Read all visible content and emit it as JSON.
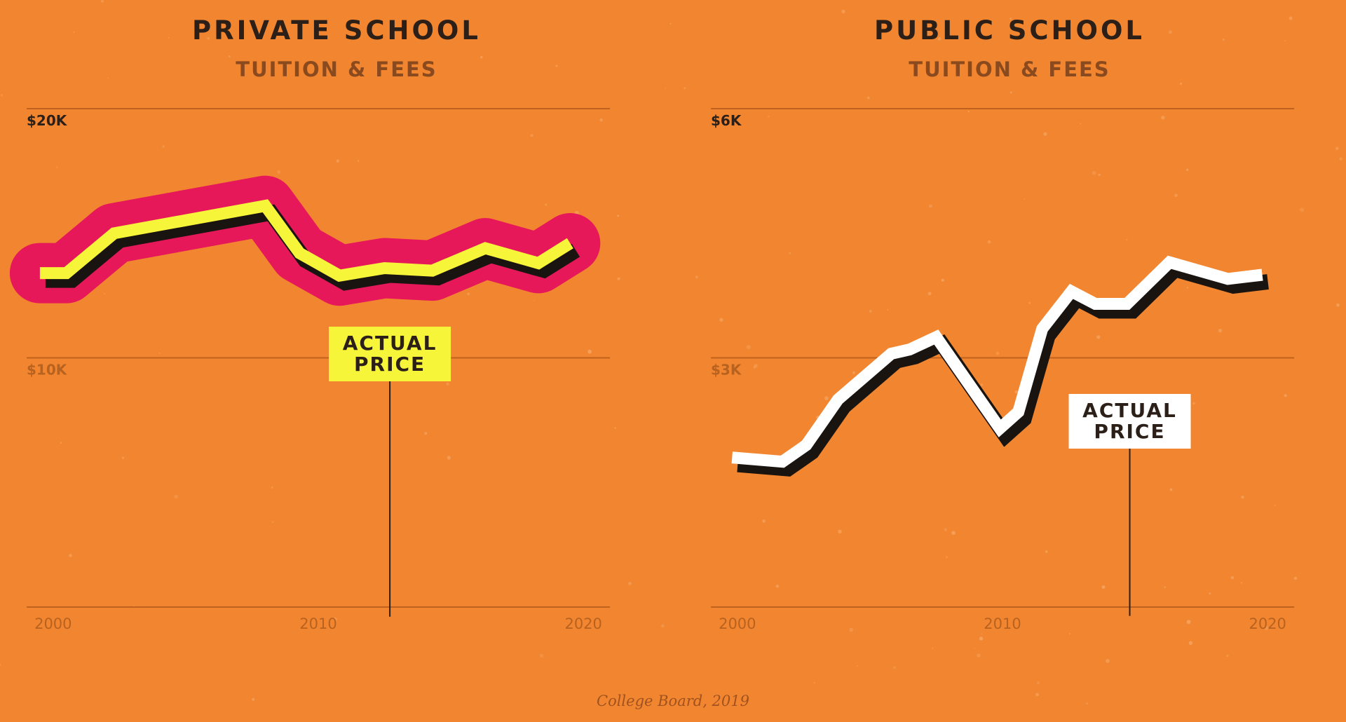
{
  "colors": {
    "background": "#F28630",
    "grid": "#c0611e",
    "tick_dark": "#2b1f18",
    "tick_light": "#b8621f",
    "line_shadow": "#1a1410",
    "private_line": "#F7F53A",
    "private_highlight": "#E6185A",
    "private_label_bg": "#F7F53A",
    "public_line": "#FFFFFF",
    "public_label_bg": "#FFFFFF"
  },
  "chart_data": [
    {
      "type": "line",
      "title": "PRIVATE SCHOOL",
      "subtitle": "TUITION & FEES",
      "xlim": [
        1999,
        2021
      ],
      "ylim": [
        0,
        20000
      ],
      "y_ticks": [
        {
          "value": 20000,
          "label": "$20K"
        },
        {
          "value": 10000,
          "label": "$10K"
        }
      ],
      "x_ticks": [
        {
          "value": 2000,
          "label": "2000"
        },
        {
          "value": 2010,
          "label": "2010"
        },
        {
          "value": 2020,
          "label": "2020"
        }
      ],
      "grid": true,
      "series": [
        {
          "x": [
            1999.5,
            2000.5,
            2002.3,
            2008.0,
            2009.3,
            2010.8,
            2012.5,
            2014.3,
            2016.3,
            2018.3,
            2019.5
          ],
          "values": [
            13400,
            13400,
            15000,
            16100,
            14200,
            13300,
            13600,
            13500,
            14400,
            13800,
            14600
          ]
        }
      ],
      "annotation": {
        "text": "ACTUAL\nPRICE",
        "line1": "ACTUAL",
        "line2": "PRICE",
        "x": 2012.7
      }
    },
    {
      "type": "line",
      "title": "PUBLIC SCHOOL",
      "subtitle": "TUITION & FEES",
      "xlim": [
        1999,
        2021
      ],
      "ylim": [
        0,
        6000
      ],
      "y_ticks": [
        {
          "value": 6000,
          "label": "$6K"
        },
        {
          "value": 3000,
          "label": "$3K"
        }
      ],
      "x_ticks": [
        {
          "value": 2000,
          "label": "2000"
        },
        {
          "value": 2010,
          "label": "2010"
        },
        {
          "value": 2020,
          "label": "2020"
        }
      ],
      "grid": true,
      "series": [
        {
          "x": [
            1999.8,
            2001.7,
            2002.6,
            2003.8,
            2005.8,
            2006.5,
            2007.5,
            2009.9,
            2010.6,
            2011.5,
            2012.6,
            2013.5,
            2014.7,
            2016.3,
            2018.5,
            2019.8
          ],
          "values": [
            1800,
            1750,
            1950,
            2500,
            3050,
            3100,
            3250,
            2150,
            2350,
            3350,
            3800,
            3650,
            3650,
            4150,
            3950,
            4000
          ]
        }
      ],
      "annotation": {
        "text": "ACTUAL\nPRICE",
        "line1": "ACTUAL",
        "line2": "PRICE",
        "x": 2014.8
      }
    }
  ],
  "source": "College Board, 2019"
}
